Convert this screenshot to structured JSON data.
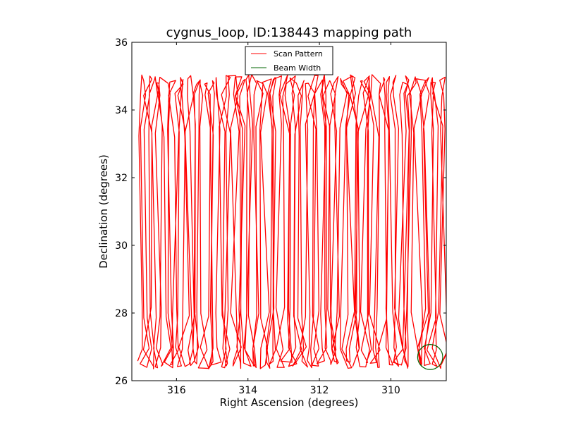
{
  "chart_data": {
    "type": "line",
    "title": "cygnus_loop, ID:138443 mapping path",
    "xlabel": "Right Ascension (degrees)",
    "ylabel": "Declination (degrees)",
    "xlim": [
      317.25,
      308.45
    ],
    "ylim": [
      26,
      36
    ],
    "x_inverted": true,
    "xticks": [
      316,
      314,
      312,
      310
    ],
    "yticks": [
      26,
      28,
      30,
      32,
      34,
      36
    ],
    "grid": false,
    "legend": {
      "placement": "upper-center",
      "entries": [
        {
          "label": "Scan Pattern",
          "color": "#ff0000"
        },
        {
          "label": "Beam Width",
          "color": "#006400"
        }
      ]
    },
    "series": [
      {
        "name": "Scan Pattern",
        "color": "#ff0000",
        "kind": "boustrophedon scan path",
        "ra_start": 317.0,
        "ra_end": 308.5,
        "n_legs": 104,
        "dec_min": 26.35,
        "dec_max": 35.05,
        "turnaround_bands": [
          [
            26.3,
            28.3
          ],
          [
            33.1,
            35.1
          ]
        ]
      },
      {
        "name": "Beam Width",
        "color": "#006400",
        "kind": "circle",
        "center_ra": 308.9,
        "center_dec": 26.7,
        "radius_deg": 0.37
      }
    ]
  },
  "colors": {
    "scan": "#ff0000",
    "beam": "#006400",
    "axes": "#000000"
  }
}
